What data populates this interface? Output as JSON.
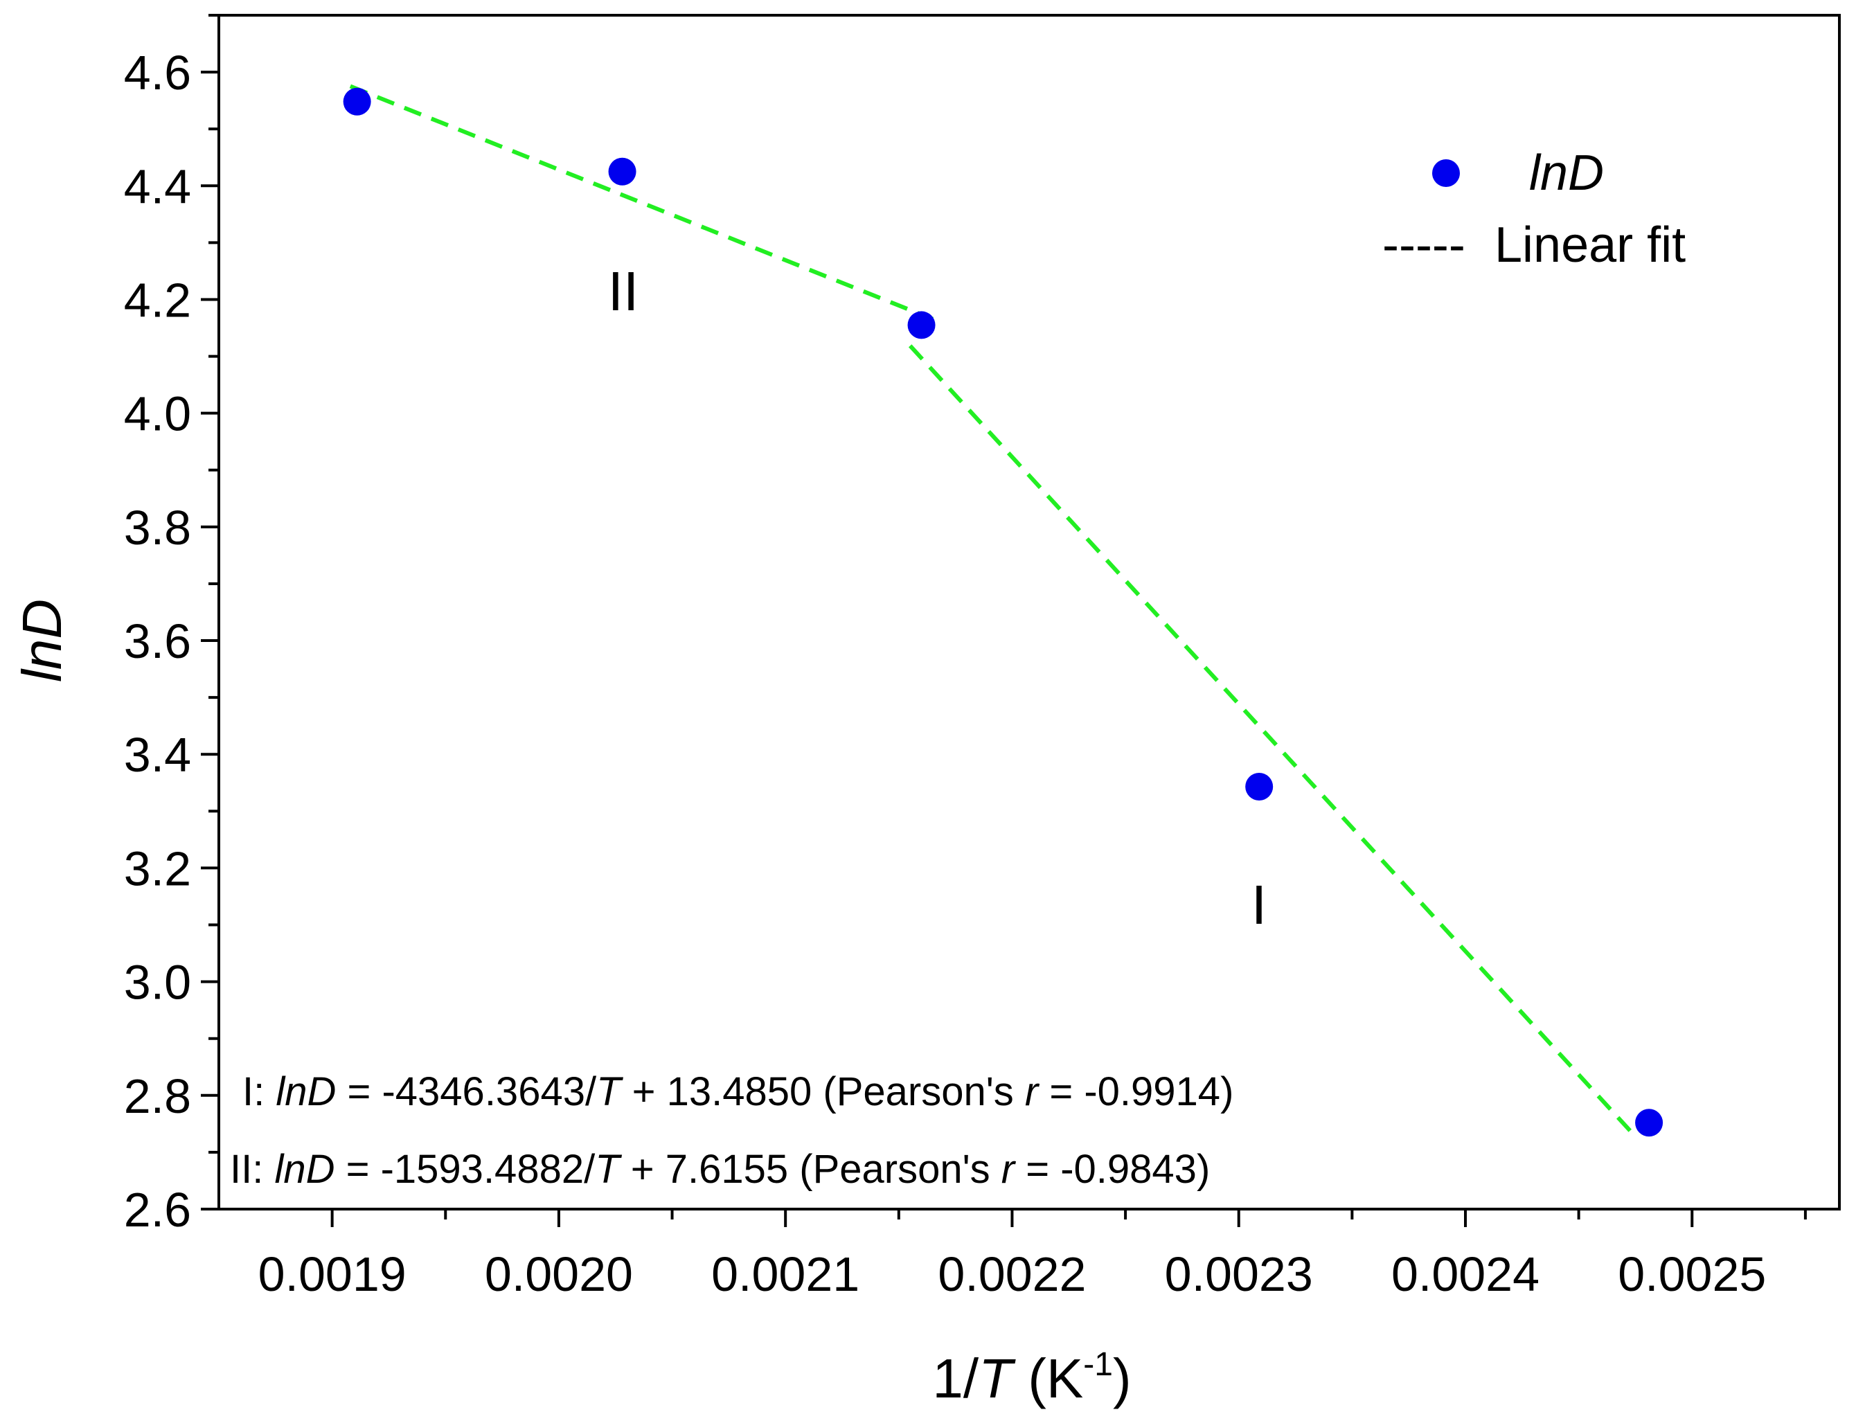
{
  "chart_data": {
    "type": "scatter",
    "title": "",
    "xlabel": {
      "prefix": "1/",
      "italic": "T",
      "unit_open": " (K",
      "sup": "-1",
      "unit_close": ")"
    },
    "ylabel": "lnD",
    "xlim": [
      0.00185,
      0.002565
    ],
    "ylim": [
      2.6,
      4.7
    ],
    "x_ticks": [
      0.0019,
      0.002,
      0.0021,
      0.0022,
      0.0023,
      0.0024,
      0.0025
    ],
    "x_tick_labels": [
      "0.0019",
      "0.0020",
      "0.0021",
      "0.0022",
      "0.0023",
      "0.0024",
      "0.0025"
    ],
    "y_ticks": [
      2.6,
      2.8,
      3.0,
      3.2,
      3.4,
      3.6,
      3.8,
      4.0,
      4.2,
      4.4,
      4.6
    ],
    "y_tick_labels": [
      "2.6",
      "2.8",
      "3.0",
      "3.2",
      "3.4",
      "3.6",
      "3.8",
      "4.0",
      "4.2",
      "4.4",
      "4.6"
    ],
    "series": [
      {
        "name": "lnD",
        "kind": "scatter",
        "color": "#0000ee",
        "x": [
          0.001911,
          0.002028,
          0.00216,
          0.002309,
          0.002481
        ],
        "y": [
          4.548,
          4.425,
          4.155,
          3.343,
          2.752
        ]
      }
    ],
    "fits": [
      {
        "name": "I",
        "slope": -4346.3643,
        "intercept": 13.485,
        "x_range": [
          0.002155,
          0.002475
        ],
        "color": "#22ee22"
      },
      {
        "name": "II",
        "slope": -1593.4882,
        "intercept": 7.6155,
        "x_range": [
          0.001908,
          0.002165
        ],
        "color": "#22ee22"
      }
    ],
    "legend": {
      "position": "top-right",
      "scatter_label": "lnD",
      "line_symbol": "-----",
      "line_label": "Linear fit"
    },
    "annotations": {
      "region_I": "I",
      "region_II": "II",
      "eq_I": {
        "prefix": "I: ",
        "var": "lnD",
        "mid1": " = -4346.3643/",
        "t": "T",
        "mid2": " + 13.4850  (Pearson's ",
        "r": "r",
        "tail": " = -0.9914)"
      },
      "eq_II": {
        "prefix": "II: ",
        "var": "lnD",
        "mid1": " = -1593.4882/",
        "t": "T",
        "mid2": " +  7.6155   (Pearson's ",
        "r": "r",
        "tail": " = -0.9843)"
      }
    },
    "grid": false
  }
}
